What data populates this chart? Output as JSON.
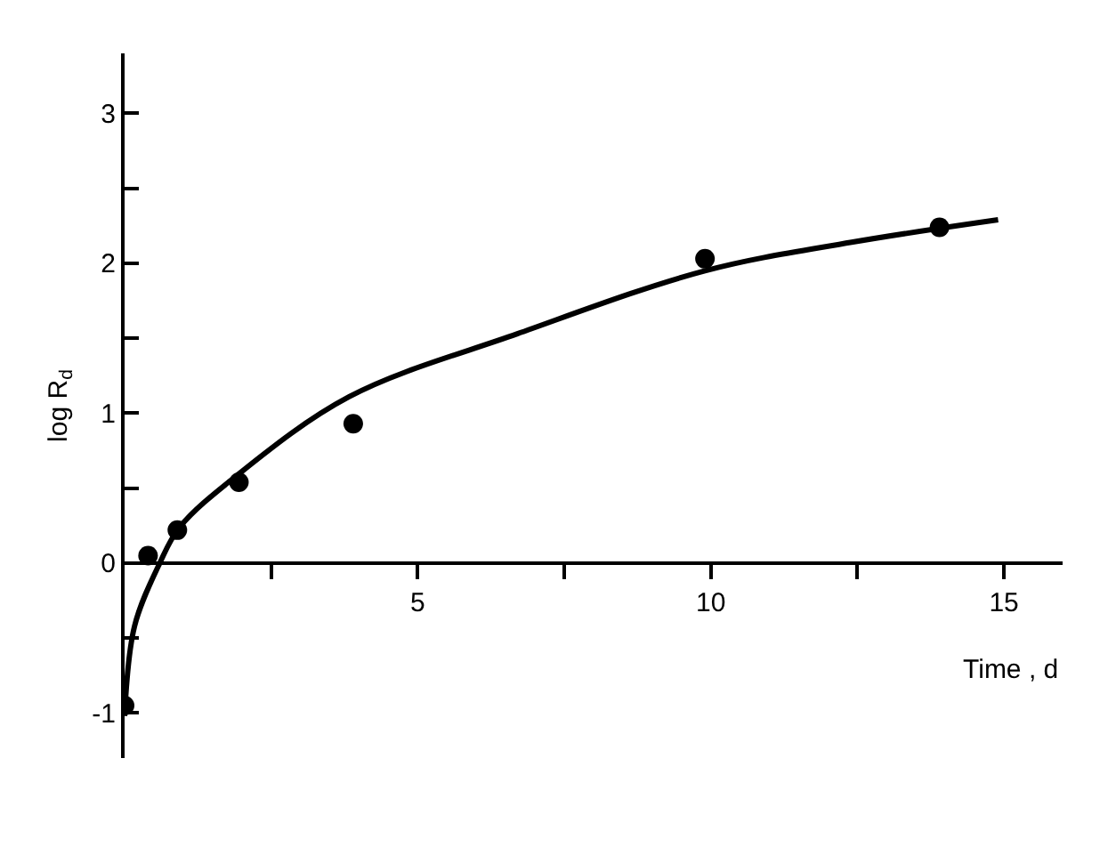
{
  "chart_data": {
    "type": "scatter",
    "xlabel": "Time , d",
    "ylabel": "log R$_{d}$",
    "xlim": [
      0,
      16
    ],
    "ylim": [
      -1.3,
      3.4
    ],
    "xticks": [
      {
        "value": 2.5,
        "label": null
      },
      5,
      {
        "value": 7.5,
        "label": null
      },
      10,
      {
        "value": 12.5,
        "label": null
      },
      15
    ],
    "yticks": [
      -1,
      {
        "value": -0.5,
        "label": null
      },
      0,
      {
        "value": 0.5,
        "label": null
      },
      1,
      {
        "value": 1.5,
        "label": null
      },
      2,
      {
        "value": 2.5,
        "label": null
      },
      3
    ],
    "grid": false,
    "marker": "circle",
    "series": [
      {
        "color": "#000000",
        "x": [
          0,
          0.4,
          0.9,
          1.95,
          3.9,
          9.9,
          13.9
        ],
        "values": [
          -0.95,
          0.05,
          0.22,
          0.54,
          0.93,
          2.03,
          2.24
        ]
      },
      {
        "type": "line",
        "color": "#000000",
        "marker": "none",
        "line_style": "solid",
        "x": [
          0,
          0.17,
          0.6,
          0.94,
          1.9,
          3.83,
          6.7,
          9.9,
          12.4,
          14.9
        ],
        "values": [
          -1.02,
          -0.42,
          0,
          0.24,
          0.58,
          1.11,
          1.53,
          1.95,
          2.14,
          2.29
        ]
      }
    ]
  }
}
